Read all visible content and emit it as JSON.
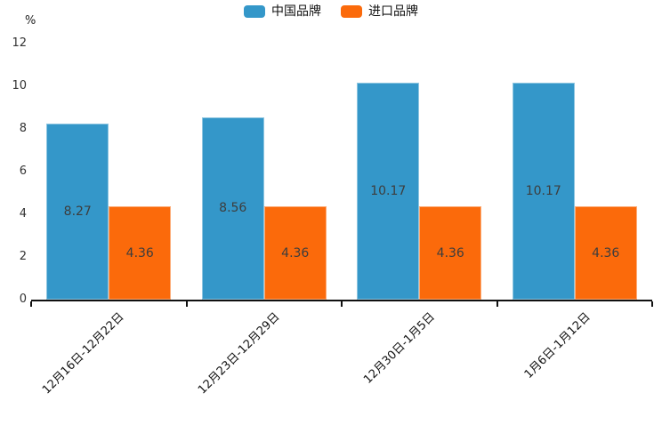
{
  "chart_data": {
    "type": "bar",
    "title": "",
    "unit_label": "%",
    "categories": [
      "12月16日-12月22日",
      "12月23日-12月29日",
      "12月30日-1月5日",
      "1月6日-1月12日"
    ],
    "series": [
      {
        "name": "中国品牌",
        "color": "#3497C9",
        "values": [
          8.27,
          8.56,
          10.17,
          10.17
        ]
      },
      {
        "name": "进口品牌",
        "color": "#FB6A0B",
        "values": [
          4.36,
          4.36,
          4.36,
          4.36
        ]
      }
    ],
    "ylim": [
      0,
      12
    ],
    "yticks": [
      0,
      2,
      4,
      6,
      8,
      10,
      12
    ],
    "xlabel": "",
    "ylabel": "%",
    "grid": false,
    "legend_position": "top-center",
    "value_labels": "inside-center",
    "value_label_color": "#3d3d3d",
    "axis_color": "#111111"
  }
}
